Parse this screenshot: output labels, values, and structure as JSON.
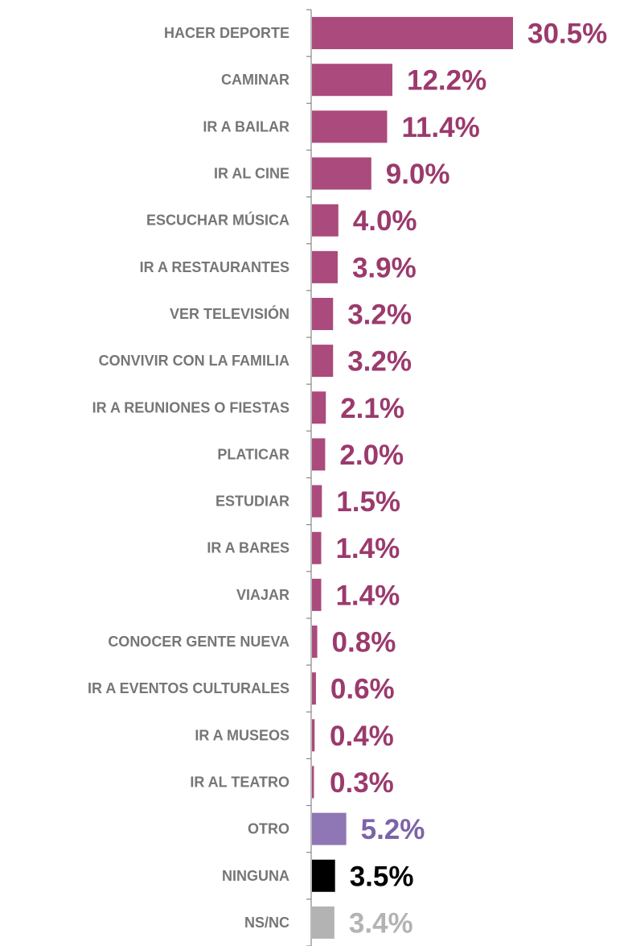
{
  "chart_data": {
    "type": "bar",
    "orientation": "horizontal",
    "categories": [
      "HACER DEPORTE",
      "CAMINAR",
      "IR A BAILAR",
      "IR AL CINE",
      "ESCUCHAR MÚSICA",
      "IR A RESTAURANTES",
      "VER TELEVISIÓN",
      "CONVIVIR CON LA FAMILIA",
      "IR A REUNIONES O FIESTAS",
      "PLATICAR",
      "ESTUDIAR",
      "IR A BARES",
      "VIAJAR",
      "CONOCER GENTE NUEVA",
      "IR A EVENTOS CULTURALES",
      "IR A MUSEOS",
      "IR AL TEATRO",
      "OTRO",
      "NINGUNA",
      "NS/NC"
    ],
    "values": [
      30.5,
      12.2,
      11.4,
      9.0,
      4.0,
      3.9,
      3.2,
      3.2,
      2.1,
      2.0,
      1.5,
      1.4,
      1.4,
      0.8,
      0.6,
      0.4,
      0.3,
      5.2,
      3.5,
      3.4
    ],
    "value_labels": [
      "30.5%",
      "12.2%",
      "11.4%",
      "9.0%",
      "4.0%",
      "3.9%",
      "3.2%",
      "3.2%",
      "2.1%",
      "2.0%",
      "1.5%",
      "1.4%",
      "1.4%",
      "0.8%",
      "0.6%",
      "0.4%",
      "0.3%",
      "5.2%",
      "3.5%",
      "3.4%"
    ],
    "colors": [
      "#ab4a7c",
      "#ab4a7c",
      "#ab4a7c",
      "#ab4a7c",
      "#ab4a7c",
      "#ab4a7c",
      "#ab4a7c",
      "#ab4a7c",
      "#ab4a7c",
      "#ab4a7c",
      "#ab4a7c",
      "#ab4a7c",
      "#ab4a7c",
      "#ab4a7c",
      "#ab4a7c",
      "#ab4a7c",
      "#ab4a7c",
      "#8e77b4",
      "#000000",
      "#b3b3b3"
    ],
    "label_colors": [
      "#9b3a6d",
      "#9b3a6d",
      "#9b3a6d",
      "#9b3a6d",
      "#9b3a6d",
      "#9b3a6d",
      "#9b3a6d",
      "#9b3a6d",
      "#9b3a6d",
      "#9b3a6d",
      "#9b3a6d",
      "#9b3a6d",
      "#9b3a6d",
      "#9b3a6d",
      "#9b3a6d",
      "#9b3a6d",
      "#9b3a6d",
      "#7d63a8",
      "#000000",
      "#b3b3b3"
    ]
  }
}
